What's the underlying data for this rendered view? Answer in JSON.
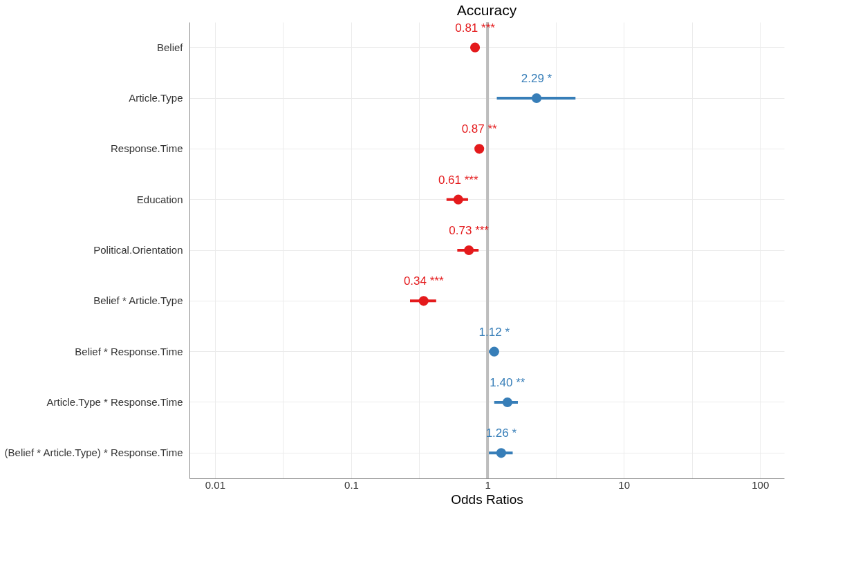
{
  "chart_data": {
    "type": "scatter",
    "orientation": "horizontal",
    "title": "Accuracy",
    "xlabel": "Odds Ratios",
    "categories": [
      "Belief",
      "Article.Type",
      "Response.Time",
      "Education",
      "Political.Orientation",
      "Belief * Article.Type",
      "Belief * Response.Time",
      "Article.Type * Response.Time",
      "(Belief * Article.Type) * Response.Time"
    ],
    "values": [
      0.81,
      2.29,
      0.87,
      0.61,
      0.73,
      0.34,
      1.12,
      1.4,
      1.26
    ],
    "errors": [
      [
        0.76,
        0.86
      ],
      [
        1.17,
        4.42
      ],
      [
        0.83,
        0.91
      ],
      [
        0.5,
        0.72
      ],
      [
        0.6,
        0.86
      ],
      [
        0.27,
        0.42
      ],
      [
        1.01,
        1.21
      ],
      [
        1.12,
        1.67
      ],
      [
        1.02,
        1.53
      ]
    ],
    "colors": [
      "#e41a1c",
      "#377eb8",
      "#e41a1c",
      "#e41a1c",
      "#e41a1c",
      "#e41a1c",
      "#377eb8",
      "#377eb8",
      "#377eb8"
    ],
    "value_labels": [
      "0.81 ***",
      "2.29 *",
      "0.87 **",
      "0.61 ***",
      "0.73 ***",
      "0.34 ***",
      "1.12 *",
      "1.40 **",
      "1.26 *"
    ],
    "log": "x",
    "xlim": [
      0.0065,
      150
    ],
    "xticks": [
      0.01,
      {
        "value": 0.0316,
        "label": null
      },
      0.1,
      {
        "value": 0.316,
        "label": null
      },
      1,
      {
        "value": 3.16,
        "label": null
      },
      10,
      {
        "value": 31.6,
        "label": null
      },
      100
    ],
    "ref_lines": [
      {
        "axis": "x",
        "value": 1,
        "color": "#bdbdbd"
      }
    ],
    "grid": true,
    "marker": "circle"
  }
}
